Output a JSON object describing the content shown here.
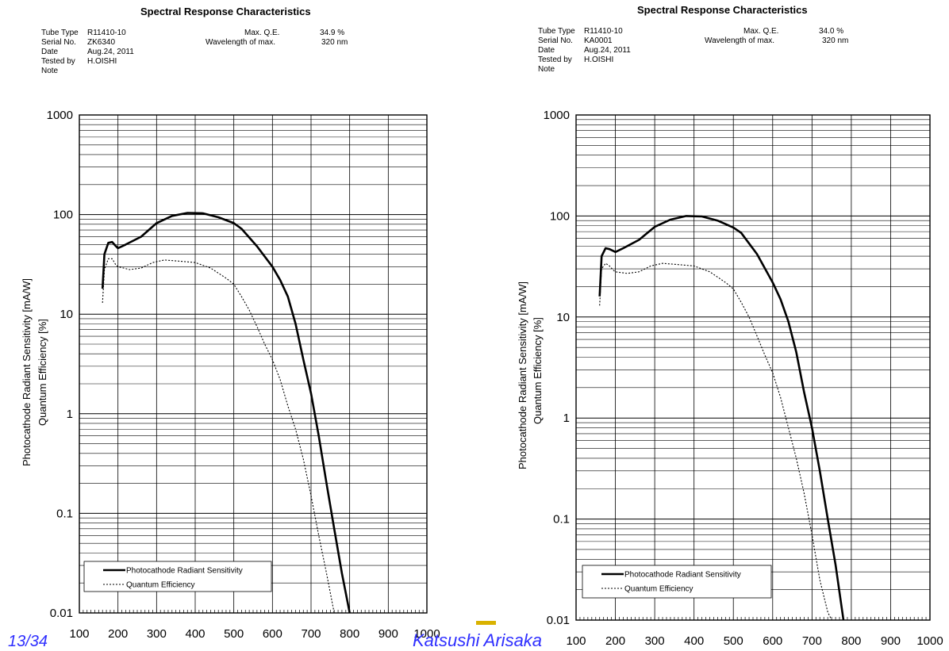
{
  "footer": {
    "left_text": "13/34",
    "author": "Katsushi Arisaka"
  },
  "panels": [
    {
      "title": "Spectral Response Characteristics",
      "meta": [
        {
          "label": "Tube Type",
          "value": "R11410-10"
        },
        {
          "label": "Serial No.",
          "value": "ZK6340"
        },
        {
          "label": "Date",
          "value": "Aug.24, 2011"
        },
        {
          "label": "Tested by",
          "value": "H.OISHI"
        },
        {
          "label": "Note",
          "value": ""
        }
      ],
      "maxqe_label": "Max. Q.E.",
      "maxqe_value": "34.9 %",
      "wl_label": "Wavelength of max.",
      "wl_value": "320 nm",
      "ylabel1": "Photocathode Radiant Sensitivity   [mA/W]",
      "ylabel2": "Quantum Efficiency   [%]"
    },
    {
      "title": "Spectral Response Characteristics",
      "meta": [
        {
          "label": "Tube Type",
          "value": "R11410-10"
        },
        {
          "label": "Serial No.",
          "value": "KA0001"
        },
        {
          "label": "Date",
          "value": "Aug.24, 2011"
        },
        {
          "label": "Tested by",
          "value": "H.OISHI"
        },
        {
          "label": "Note",
          "value": ""
        }
      ],
      "maxqe_label": "Max. Q.E.",
      "maxqe_value": "34.0 %",
      "wl_label": "Wavelength of max.",
      "wl_value": "320 nm",
      "ylabel1": "Photocathode Radiant Sensitivity   [mA/W]",
      "ylabel2": "Quantum Efficiency   [%]"
    }
  ],
  "chart_data": [
    {
      "type": "line",
      "title": "Spectral Response Characteristics",
      "xlabel": "",
      "ylabel": "Photocathode Radiant Sensitivity [mA/W] / Quantum Efficiency [%]",
      "xlim": [
        100,
        1000
      ],
      "ylim": [
        0.01,
        1000
      ],
      "yscale": "log",
      "grid": true,
      "legend_position": "bottom-left",
      "x_ticks": [
        "100",
        "200",
        "300",
        "400",
        "500",
        "600",
        "700",
        "800",
        "900",
        "1000"
      ],
      "y_ticks": [
        "0.01",
        "0.1",
        "1",
        "10",
        "100",
        "1000"
      ],
      "series": [
        {
          "name": "Photocathode Radiant Sensitivity",
          "style": "solid",
          "x": [
            160,
            165,
            175,
            185,
            195,
            200,
            220,
            260,
            300,
            340,
            380,
            420,
            460,
            500,
            520,
            560,
            600,
            620,
            640,
            660,
            680,
            700,
            720,
            740,
            760,
            780,
            800
          ],
          "y": [
            18,
            40,
            52,
            53,
            48,
            46,
            50,
            60,
            82,
            97,
            104,
            103,
            94,
            82,
            72,
            48,
            30,
            22,
            15,
            8,
            3.5,
            1.6,
            0.6,
            0.2,
            0.07,
            0.025,
            0.01
          ]
        },
        {
          "name": "Quantum Efficiency",
          "style": "dotted",
          "x": [
            160,
            165,
            175,
            185,
            195,
            200,
            230,
            260,
            290,
            320,
            360,
            400,
            440,
            480,
            500,
            520,
            540,
            560,
            580,
            600,
            620,
            640,
            660,
            680,
            700,
            720,
            740,
            760
          ],
          "y": [
            13,
            28,
            36,
            36,
            31,
            30,
            28,
            29,
            33,
            35,
            34,
            33,
            29,
            23,
            20,
            15,
            11,
            7.5,
            5,
            3.5,
            2.2,
            1.2,
            0.7,
            0.35,
            0.15,
            0.06,
            0.025,
            0.01
          ]
        }
      ]
    },
    {
      "type": "line",
      "title": "Spectral Response Characteristics",
      "xlabel": "",
      "ylabel": "Photocathode Radiant Sensitivity [mA/W] / Quantum Efficiency [%]",
      "xlim": [
        100,
        1000
      ],
      "ylim": [
        0.01,
        1000
      ],
      "yscale": "log",
      "grid": true,
      "legend_position": "bottom-left",
      "x_ticks": [
        "100",
        "200",
        "300",
        "400",
        "500",
        "600",
        "700",
        "800",
        "900",
        "1000"
      ],
      "y_ticks": [
        "0.01",
        "0.1",
        "1",
        "10",
        "100",
        "1000"
      ],
      "series": [
        {
          "name": "Photocathode Radiant Sensitivity",
          "style": "solid",
          "x": [
            160,
            165,
            175,
            185,
            195,
            200,
            220,
            260,
            300,
            340,
            380,
            420,
            460,
            500,
            520,
            560,
            600,
            620,
            640,
            660,
            680,
            700,
            720,
            740,
            760,
            780
          ],
          "y": [
            16,
            40,
            48,
            47,
            45,
            44,
            48,
            58,
            78,
            92,
            100,
            99,
            90,
            77,
            68,
            42,
            22,
            15,
            9,
            4.5,
            1.8,
            0.8,
            0.3,
            0.1,
            0.035,
            0.01
          ]
        },
        {
          "name": "Quantum Efficiency",
          "style": "dotted",
          "x": [
            160,
            165,
            175,
            185,
            195,
            200,
            230,
            260,
            290,
            320,
            360,
            400,
            440,
            480,
            500,
            520,
            540,
            560,
            580,
            600,
            620,
            640,
            660,
            680,
            700,
            720,
            740,
            750
          ],
          "y": [
            13,
            30,
            34,
            32,
            29,
            28,
            27,
            28,
            32,
            34,
            33,
            32,
            28,
            22,
            19,
            14,
            10,
            6.5,
            4.2,
            2.8,
            1.6,
            0.8,
            0.4,
            0.18,
            0.07,
            0.025,
            0.012,
            0.01
          ]
        }
      ]
    }
  ]
}
